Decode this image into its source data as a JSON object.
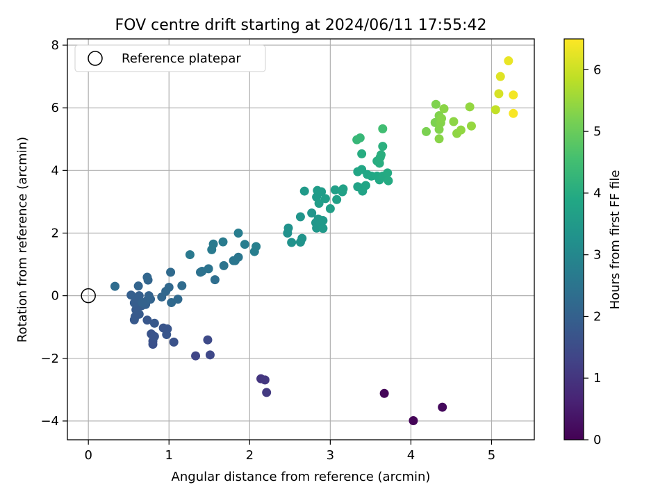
{
  "chart_data": {
    "type": "scatter",
    "title": "FOV centre drift starting at 2024/06/11 17:55:42",
    "xlabel": "Angular distance from reference (arcmin)",
    "ylabel": "Rotation from reference (arcmin)",
    "xlim": [
      -0.26,
      5.53
    ],
    "ylim": [
      -4.6,
      8.2
    ],
    "xticks": [
      0,
      1,
      2,
      3,
      4,
      5
    ],
    "yticks": [
      -4,
      -2,
      0,
      2,
      4,
      6,
      8
    ],
    "grid": true,
    "legend": {
      "position": "top-left",
      "entries": [
        {
          "label": "Reference platepar",
          "marker": "hollow-circle"
        }
      ]
    },
    "reference_point": {
      "x": 0,
      "y": 0
    },
    "colorbar": {
      "label": "Hours from first FF file",
      "colormap": "viridis",
      "range": [
        0,
        6.5
      ],
      "ticks": [
        0,
        1,
        2,
        3,
        4,
        5,
        6
      ]
    },
    "points": [
      {
        "x": 4.03,
        "y": -3.99,
        "h": 0.05
      },
      {
        "x": 3.67,
        "y": -3.12,
        "h": 0.1
      },
      {
        "x": 4.39,
        "y": -3.56,
        "h": 0.15
      },
      {
        "x": 2.14,
        "y": -2.65,
        "h": 1.0
      },
      {
        "x": 2.19,
        "y": -2.69,
        "h": 1.05
      },
      {
        "x": 2.21,
        "y": -3.09,
        "h": 1.1
      },
      {
        "x": 1.33,
        "y": -1.92,
        "h": 1.35
      },
      {
        "x": 1.51,
        "y": -1.89,
        "h": 1.4
      },
      {
        "x": 1.48,
        "y": -1.41,
        "h": 1.45
      },
      {
        "x": 0.8,
        "y": -1.55,
        "h": 1.6
      },
      {
        "x": 0.8,
        "y": -1.45,
        "h": 1.62
      },
      {
        "x": 1.06,
        "y": -1.48,
        "h": 1.64
      },
      {
        "x": 0.78,
        "y": -1.22,
        "h": 1.66
      },
      {
        "x": 0.82,
        "y": -1.3,
        "h": 1.68
      },
      {
        "x": 0.93,
        "y": -1.03,
        "h": 1.7
      },
      {
        "x": 0.98,
        "y": -1.06,
        "h": 1.72
      },
      {
        "x": 0.97,
        "y": -1.24,
        "h": 1.74
      },
      {
        "x": 0.73,
        "y": -0.78,
        "h": 1.76
      },
      {
        "x": 0.82,
        "y": -0.88,
        "h": 1.78
      },
      {
        "x": 0.57,
        "y": -0.77,
        "h": 1.8
      },
      {
        "x": 0.58,
        "y": -0.67,
        "h": 1.82
      },
      {
        "x": 0.63,
        "y": -0.59,
        "h": 1.84
      },
      {
        "x": 0.59,
        "y": -0.45,
        "h": 1.86
      },
      {
        "x": 0.66,
        "y": -0.32,
        "h": 1.88
      },
      {
        "x": 0.57,
        "y": -0.23,
        "h": 1.9
      },
      {
        "x": 0.6,
        "y": -0.1,
        "h": 1.92
      },
      {
        "x": 0.53,
        "y": 0.02,
        "h": 1.94
      },
      {
        "x": 0.63,
        "y": 0.0,
        "h": 1.96
      },
      {
        "x": 0.71,
        "y": -0.28,
        "h": 1.98
      },
      {
        "x": 0.73,
        "y": -0.15,
        "h": 2.0
      },
      {
        "x": 0.67,
        "y": -0.22,
        "h": 2.02
      },
      {
        "x": 0.75,
        "y": 0.0,
        "h": 2.04
      },
      {
        "x": 0.77,
        "y": -0.11,
        "h": 2.06
      },
      {
        "x": 0.62,
        "y": 0.31,
        "h": 2.08
      },
      {
        "x": 0.74,
        "y": 0.5,
        "h": 2.1
      },
      {
        "x": 0.73,
        "y": 0.59,
        "h": 2.12
      },
      {
        "x": 0.91,
        "y": -0.04,
        "h": 2.14
      },
      {
        "x": 0.96,
        "y": 0.14,
        "h": 2.16
      },
      {
        "x": 1.0,
        "y": 0.27,
        "h": 2.18
      },
      {
        "x": 1.03,
        "y": -0.22,
        "h": 2.2
      },
      {
        "x": 1.11,
        "y": -0.11,
        "h": 2.22
      },
      {
        "x": 1.02,
        "y": 0.75,
        "h": 2.24
      },
      {
        "x": 1.16,
        "y": 0.32,
        "h": 2.26
      },
      {
        "x": 0.33,
        "y": 0.3,
        "h": 2.28
      },
      {
        "x": 1.57,
        "y": 0.51,
        "h": 2.34
      },
      {
        "x": 1.39,
        "y": 0.75,
        "h": 2.42
      },
      {
        "x": 1.41,
        "y": 0.78,
        "h": 2.44
      },
      {
        "x": 1.49,
        "y": 0.86,
        "h": 2.46
      },
      {
        "x": 1.68,
        "y": 0.96,
        "h": 2.5
      },
      {
        "x": 1.8,
        "y": 1.12,
        "h": 2.52
      },
      {
        "x": 1.82,
        "y": 1.12,
        "h": 2.54
      },
      {
        "x": 1.86,
        "y": 1.23,
        "h": 2.56
      },
      {
        "x": 1.26,
        "y": 1.31,
        "h": 2.62
      },
      {
        "x": 1.53,
        "y": 1.47,
        "h": 2.64
      },
      {
        "x": 1.55,
        "y": 1.65,
        "h": 2.66
      },
      {
        "x": 1.67,
        "y": 1.72,
        "h": 2.68
      },
      {
        "x": 1.86,
        "y": 2.0,
        "h": 2.72
      },
      {
        "x": 1.94,
        "y": 1.64,
        "h": 2.74
      },
      {
        "x": 2.06,
        "y": 1.41,
        "h": 2.76
      },
      {
        "x": 2.08,
        "y": 1.57,
        "h": 2.78
      },
      {
        "x": 2.47,
        "y": 2.0,
        "h": 3.25
      },
      {
        "x": 2.48,
        "y": 2.16,
        "h": 3.27
      },
      {
        "x": 2.52,
        "y": 1.7,
        "h": 3.29
      },
      {
        "x": 2.63,
        "y": 1.71,
        "h": 3.31
      },
      {
        "x": 2.65,
        "y": 1.83,
        "h": 3.33
      },
      {
        "x": 2.63,
        "y": 2.52,
        "h": 3.35
      },
      {
        "x": 2.77,
        "y": 2.64,
        "h": 3.37
      },
      {
        "x": 2.82,
        "y": 2.33,
        "h": 3.39
      },
      {
        "x": 2.83,
        "y": 2.16,
        "h": 3.41
      },
      {
        "x": 2.85,
        "y": 2.45,
        "h": 3.43
      },
      {
        "x": 2.88,
        "y": 2.31,
        "h": 3.45
      },
      {
        "x": 2.91,
        "y": 2.4,
        "h": 3.47
      },
      {
        "x": 2.91,
        "y": 2.15,
        "h": 3.49
      },
      {
        "x": 2.68,
        "y": 3.34,
        "h": 3.51
      },
      {
        "x": 2.83,
        "y": 3.15,
        "h": 3.53
      },
      {
        "x": 2.84,
        "y": 3.36,
        "h": 3.55
      },
      {
        "x": 2.89,
        "y": 3.32,
        "h": 3.57
      },
      {
        "x": 2.86,
        "y": 2.95,
        "h": 3.59
      },
      {
        "x": 2.94,
        "y": 3.1,
        "h": 3.61
      },
      {
        "x": 3.0,
        "y": 2.78,
        "h": 3.63
      },
      {
        "x": 3.06,
        "y": 3.38,
        "h": 3.65
      },
      {
        "x": 3.08,
        "y": 3.07,
        "h": 3.67
      },
      {
        "x": 3.15,
        "y": 3.32,
        "h": 3.69
      },
      {
        "x": 3.16,
        "y": 3.41,
        "h": 3.71
      },
      {
        "x": 3.34,
        "y": 3.48,
        "h": 3.73
      },
      {
        "x": 3.38,
        "y": 3.44,
        "h": 3.75
      },
      {
        "x": 3.4,
        "y": 3.34,
        "h": 3.77
      },
      {
        "x": 3.44,
        "y": 3.52,
        "h": 3.79
      },
      {
        "x": 3.34,
        "y": 3.96,
        "h": 3.81
      },
      {
        "x": 3.39,
        "y": 4.03,
        "h": 3.83
      },
      {
        "x": 3.46,
        "y": 3.87,
        "h": 3.85
      },
      {
        "x": 3.51,
        "y": 3.82,
        "h": 3.87
      },
      {
        "x": 3.58,
        "y": 3.82,
        "h": 3.89
      },
      {
        "x": 3.61,
        "y": 3.7,
        "h": 3.91
      },
      {
        "x": 3.65,
        "y": 3.82,
        "h": 3.93
      },
      {
        "x": 3.71,
        "y": 3.92,
        "h": 3.95
      },
      {
        "x": 3.72,
        "y": 3.67,
        "h": 3.97
      },
      {
        "x": 3.39,
        "y": 4.53,
        "h": 4.0
      },
      {
        "x": 3.58,
        "y": 4.3,
        "h": 4.02
      },
      {
        "x": 3.61,
        "y": 4.23,
        "h": 4.04
      },
      {
        "x": 3.62,
        "y": 4.42,
        "h": 4.06
      },
      {
        "x": 3.63,
        "y": 4.5,
        "h": 4.08
      },
      {
        "x": 3.65,
        "y": 4.77,
        "h": 4.1
      },
      {
        "x": 3.33,
        "y": 4.98,
        "h": 4.3
      },
      {
        "x": 3.37,
        "y": 5.04,
        "h": 4.32
      },
      {
        "x": 3.65,
        "y": 5.33,
        "h": 4.5
      },
      {
        "x": 4.19,
        "y": 5.24,
        "h": 5.2
      },
      {
        "x": 4.3,
        "y": 5.53,
        "h": 5.22
      },
      {
        "x": 4.31,
        "y": 6.11,
        "h": 5.24
      },
      {
        "x": 4.35,
        "y": 5.75,
        "h": 5.26
      },
      {
        "x": 4.35,
        "y": 5.31,
        "h": 5.28
      },
      {
        "x": 4.37,
        "y": 5.52,
        "h": 5.3
      },
      {
        "x": 4.38,
        "y": 5.66,
        "h": 5.32
      },
      {
        "x": 4.35,
        "y": 5.01,
        "h": 5.34
      },
      {
        "x": 4.41,
        "y": 5.97,
        "h": 5.36
      },
      {
        "x": 4.53,
        "y": 5.56,
        "h": 5.38
      },
      {
        "x": 4.57,
        "y": 5.18,
        "h": 5.4
      },
      {
        "x": 4.62,
        "y": 5.29,
        "h": 5.42
      },
      {
        "x": 4.73,
        "y": 6.03,
        "h": 5.44
      },
      {
        "x": 4.75,
        "y": 5.42,
        "h": 5.46
      },
      {
        "x": 5.05,
        "y": 5.94,
        "h": 5.9
      },
      {
        "x": 5.09,
        "y": 6.45,
        "h": 6.1
      },
      {
        "x": 5.11,
        "y": 7.0,
        "h": 6.2
      },
      {
        "x": 5.21,
        "y": 7.5,
        "h": 6.3
      },
      {
        "x": 5.27,
        "y": 6.41,
        "h": 6.4
      },
      {
        "x": 5.27,
        "y": 5.82,
        "h": 6.45
      }
    ]
  }
}
